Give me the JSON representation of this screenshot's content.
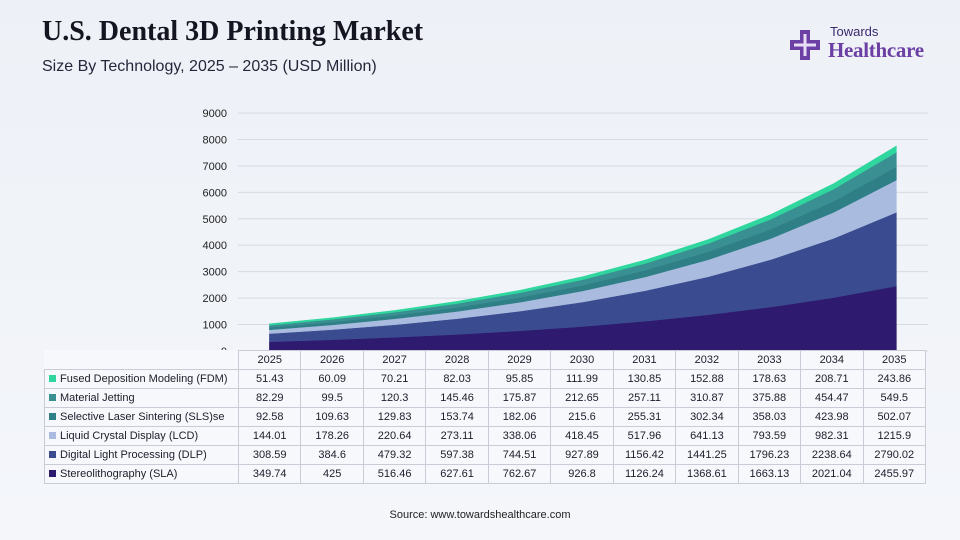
{
  "title": "U.S. Dental 3D Printing Market",
  "subtitle": "Size By Technology, 2025 – 2035 (USD Million)",
  "logo": {
    "line1": "Towards",
    "line2": "Healthcare",
    "icon": "medical-cross-icon"
  },
  "source": "Source: www.towardshealthcare.com",
  "chart_data": {
    "type": "area",
    "stacked": true,
    "x": [
      "2025",
      "2026",
      "2027",
      "2028",
      "2029",
      "2030",
      "2031",
      "2032",
      "2033",
      "2034",
      "2035"
    ],
    "ylim": [
      0,
      9000
    ],
    "yticks": [
      "0",
      "1000",
      "2000",
      "3000",
      "4000",
      "5000",
      "6000",
      "7000",
      "8000",
      "9000"
    ],
    "grid": true,
    "legend": "data-table",
    "series": [
      {
        "name": "Stereolithography (SLA)",
        "color": "#2e1a6e",
        "values": [
          349.74,
          425,
          516.46,
          627.61,
          762.67,
          926.8,
          1126.24,
          1368.61,
          1663.13,
          2021.04,
          2455.97
        ],
        "labels": [
          "349.74",
          "425",
          "516.46",
          "627.61",
          "762.67",
          "926.8",
          "1126.24",
          "1368.61",
          "1663.13",
          "2021.04",
          "2455.97"
        ]
      },
      {
        "name": "Digital Light Processing (DLP)",
        "color": "#3b4b8f",
        "values": [
          308.59,
          384.6,
          479.32,
          597.38,
          744.51,
          927.89,
          1156.42,
          1441.25,
          1796.23,
          2238.64,
          2790.02
        ],
        "labels": [
          "308.59",
          "384.6",
          "479.32",
          "597.38",
          "744.51",
          "927.89",
          "1156.42",
          "1441.25",
          "1796.23",
          "2238.64",
          "2790.02"
        ]
      },
      {
        "name": "Liquid Crystal Display (LCD)",
        "color": "#a9bcdf",
        "values": [
          144.01,
          178.26,
          220.64,
          273.11,
          338.06,
          418.45,
          517.96,
          641.13,
          793.59,
          982.31,
          1215.9
        ],
        "labels": [
          "144.01",
          "178.26",
          "220.64",
          "273.11",
          "338.06",
          "418.45",
          "517.96",
          "641.13",
          "793.59",
          "982.31",
          "1215.9"
        ]
      },
      {
        "name": "Selective Laser Sintering (SLS)se",
        "color": "#2f7f86",
        "values": [
          92.58,
          109.63,
          129.83,
          153.74,
          182.06,
          215.6,
          255.31,
          302.34,
          358.03,
          423.98,
          502.07
        ],
        "labels": [
          "92.58",
          "109.63",
          "129.83",
          "153.74",
          "182.06",
          "215.6",
          "255.31",
          "302.34",
          "358.03",
          "423.98",
          "502.07"
        ]
      },
      {
        "name": "Material Jetting",
        "color": "#3a8f92",
        "values": [
          82.29,
          99.5,
          120.3,
          145.46,
          175.87,
          212.65,
          257.11,
          310.87,
          375.88,
          454.47,
          549.5
        ],
        "labels": [
          "82.29",
          "99.5",
          "120.3",
          "145.46",
          "175.87",
          "212.65",
          "257.11",
          "310.87",
          "375.88",
          "454.47",
          "549.5"
        ]
      },
      {
        "name": "Fused Deposition Modeling (FDM)",
        "color": "#2fd69e",
        "values": [
          51.43,
          60.09,
          70.21,
          82.03,
          95.85,
          111.99,
          130.85,
          152.88,
          178.63,
          208.71,
          243.86
        ],
        "labels": [
          "51.43",
          "60.09",
          "70.21",
          "82.03",
          "95.85",
          "111.99",
          "130.85",
          "152.88",
          "178.63",
          "208.71",
          "243.86"
        ]
      }
    ]
  }
}
